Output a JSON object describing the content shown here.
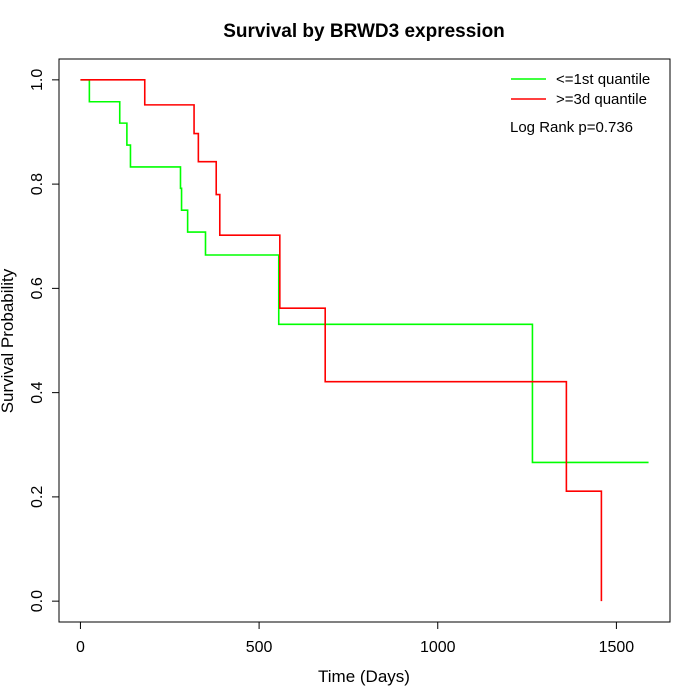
{
  "chart_data": {
    "type": "line",
    "title": "Survival by BRWD3 expression",
    "xlabel": "Time (Days)",
    "ylabel": "Survival Probability",
    "xlim": [
      -60,
      1650
    ],
    "ylim": [
      -0.04,
      1.04
    ],
    "xticks": [
      0,
      500,
      1000,
      1500
    ],
    "yticks": [
      0.0,
      0.2,
      0.4,
      0.6,
      0.8,
      1.0
    ],
    "xtick_labels": [
      "0",
      "500",
      "1000",
      "1500"
    ],
    "ytick_labels": [
      "0.0",
      "0.2",
      "0.4",
      "0.6",
      "0.8",
      "1.0"
    ],
    "grid": false,
    "legend_position": "top-right",
    "annotation": "Log Rank p=0.736",
    "series": [
      {
        "name": "<=1st quantile",
        "color": "#00ff00",
        "step": true,
        "x": [
          0,
          25,
          110,
          130,
          140,
          280,
          283,
          300,
          350,
          555,
          1265,
          1590
        ],
        "y": [
          1.0,
          0.958,
          0.917,
          0.875,
          0.833,
          0.792,
          0.75,
          0.708,
          0.664,
          0.531,
          0.266,
          0.266
        ]
      },
      {
        "name": ">=3d quantile",
        "color": "#ff0000",
        "step": true,
        "x": [
          0,
          180,
          318,
          330,
          380,
          390,
          558,
          685,
          1360,
          1458
        ],
        "y": [
          1.0,
          0.952,
          0.897,
          0.843,
          0.78,
          0.702,
          0.562,
          0.421,
          0.211,
          0.0
        ]
      }
    ]
  }
}
